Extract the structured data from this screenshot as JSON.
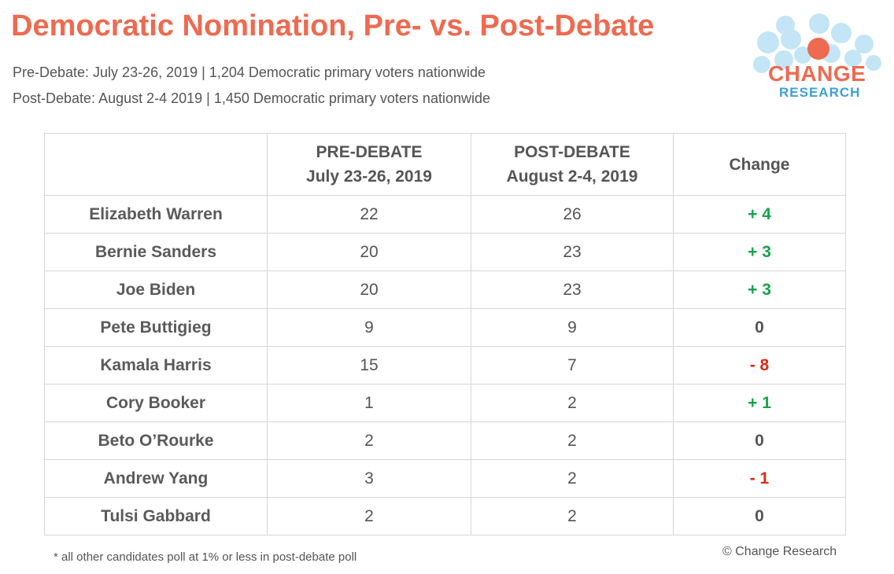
{
  "title": "Democratic Nomination, Pre- vs. Post-Debate",
  "subtitle_pre": "Pre-Debate: July 23-26, 2019 | 1,204 Democratic primary voters nationwide",
  "subtitle_post": "Post-Debate: August 2-4 2019 | 1,450 Democratic primary voters nationwide",
  "logo": {
    "word1": "CHANGE",
    "word2": "RESEARCH",
    "colors": {
      "accent": "#ee6a50",
      "blue": "#3e9fd6",
      "bubble": "#bde3f6"
    }
  },
  "chart_data": {
    "type": "table",
    "columns": {
      "candidate": "",
      "pre_line1": "PRE-DEBATE",
      "pre_line2": "July 23-26, 2019",
      "post_line1": "POST-DEBATE",
      "post_line2": "August 2-4, 2019",
      "change": "Change"
    },
    "rows": [
      {
        "candidate": "Elizabeth Warren",
        "pre": "22",
        "post": "26",
        "change": "+ 4",
        "direction": "pos"
      },
      {
        "candidate": "Bernie Sanders",
        "pre": "20",
        "post": "23",
        "change": "+ 3",
        "direction": "pos"
      },
      {
        "candidate": "Joe Biden",
        "pre": "20",
        "post": "23",
        "change": "+ 3",
        "direction": "pos"
      },
      {
        "candidate": "Pete Buttigieg",
        "pre": "9",
        "post": "9",
        "change": "0",
        "direction": "zero"
      },
      {
        "candidate": "Kamala Harris",
        "pre": "15",
        "post": "7",
        "change": "- 8",
        "direction": "neg"
      },
      {
        "candidate": "Cory Booker",
        "pre": "1",
        "post": "2",
        "change": "+ 1",
        "direction": "pos"
      },
      {
        "candidate": "Beto O’Rourke",
        "pre": "2",
        "post": "2",
        "change": "0",
        "direction": "zero"
      },
      {
        "candidate": "Andrew Yang",
        "pre": "3",
        "post": "2",
        "change": "- 1",
        "direction": "neg"
      },
      {
        "candidate": "Tulsi Gabbard",
        "pre": "2",
        "post": "2",
        "change": "0",
        "direction": "zero"
      }
    ],
    "colors": {
      "positive": "#16a34a",
      "negative": "#dd2a10",
      "neutral": "#555555",
      "title": "#ee6a50"
    }
  },
  "footnote": "* all other candidates poll at 1% or less in post-debate poll",
  "copyright": "© Change Research"
}
